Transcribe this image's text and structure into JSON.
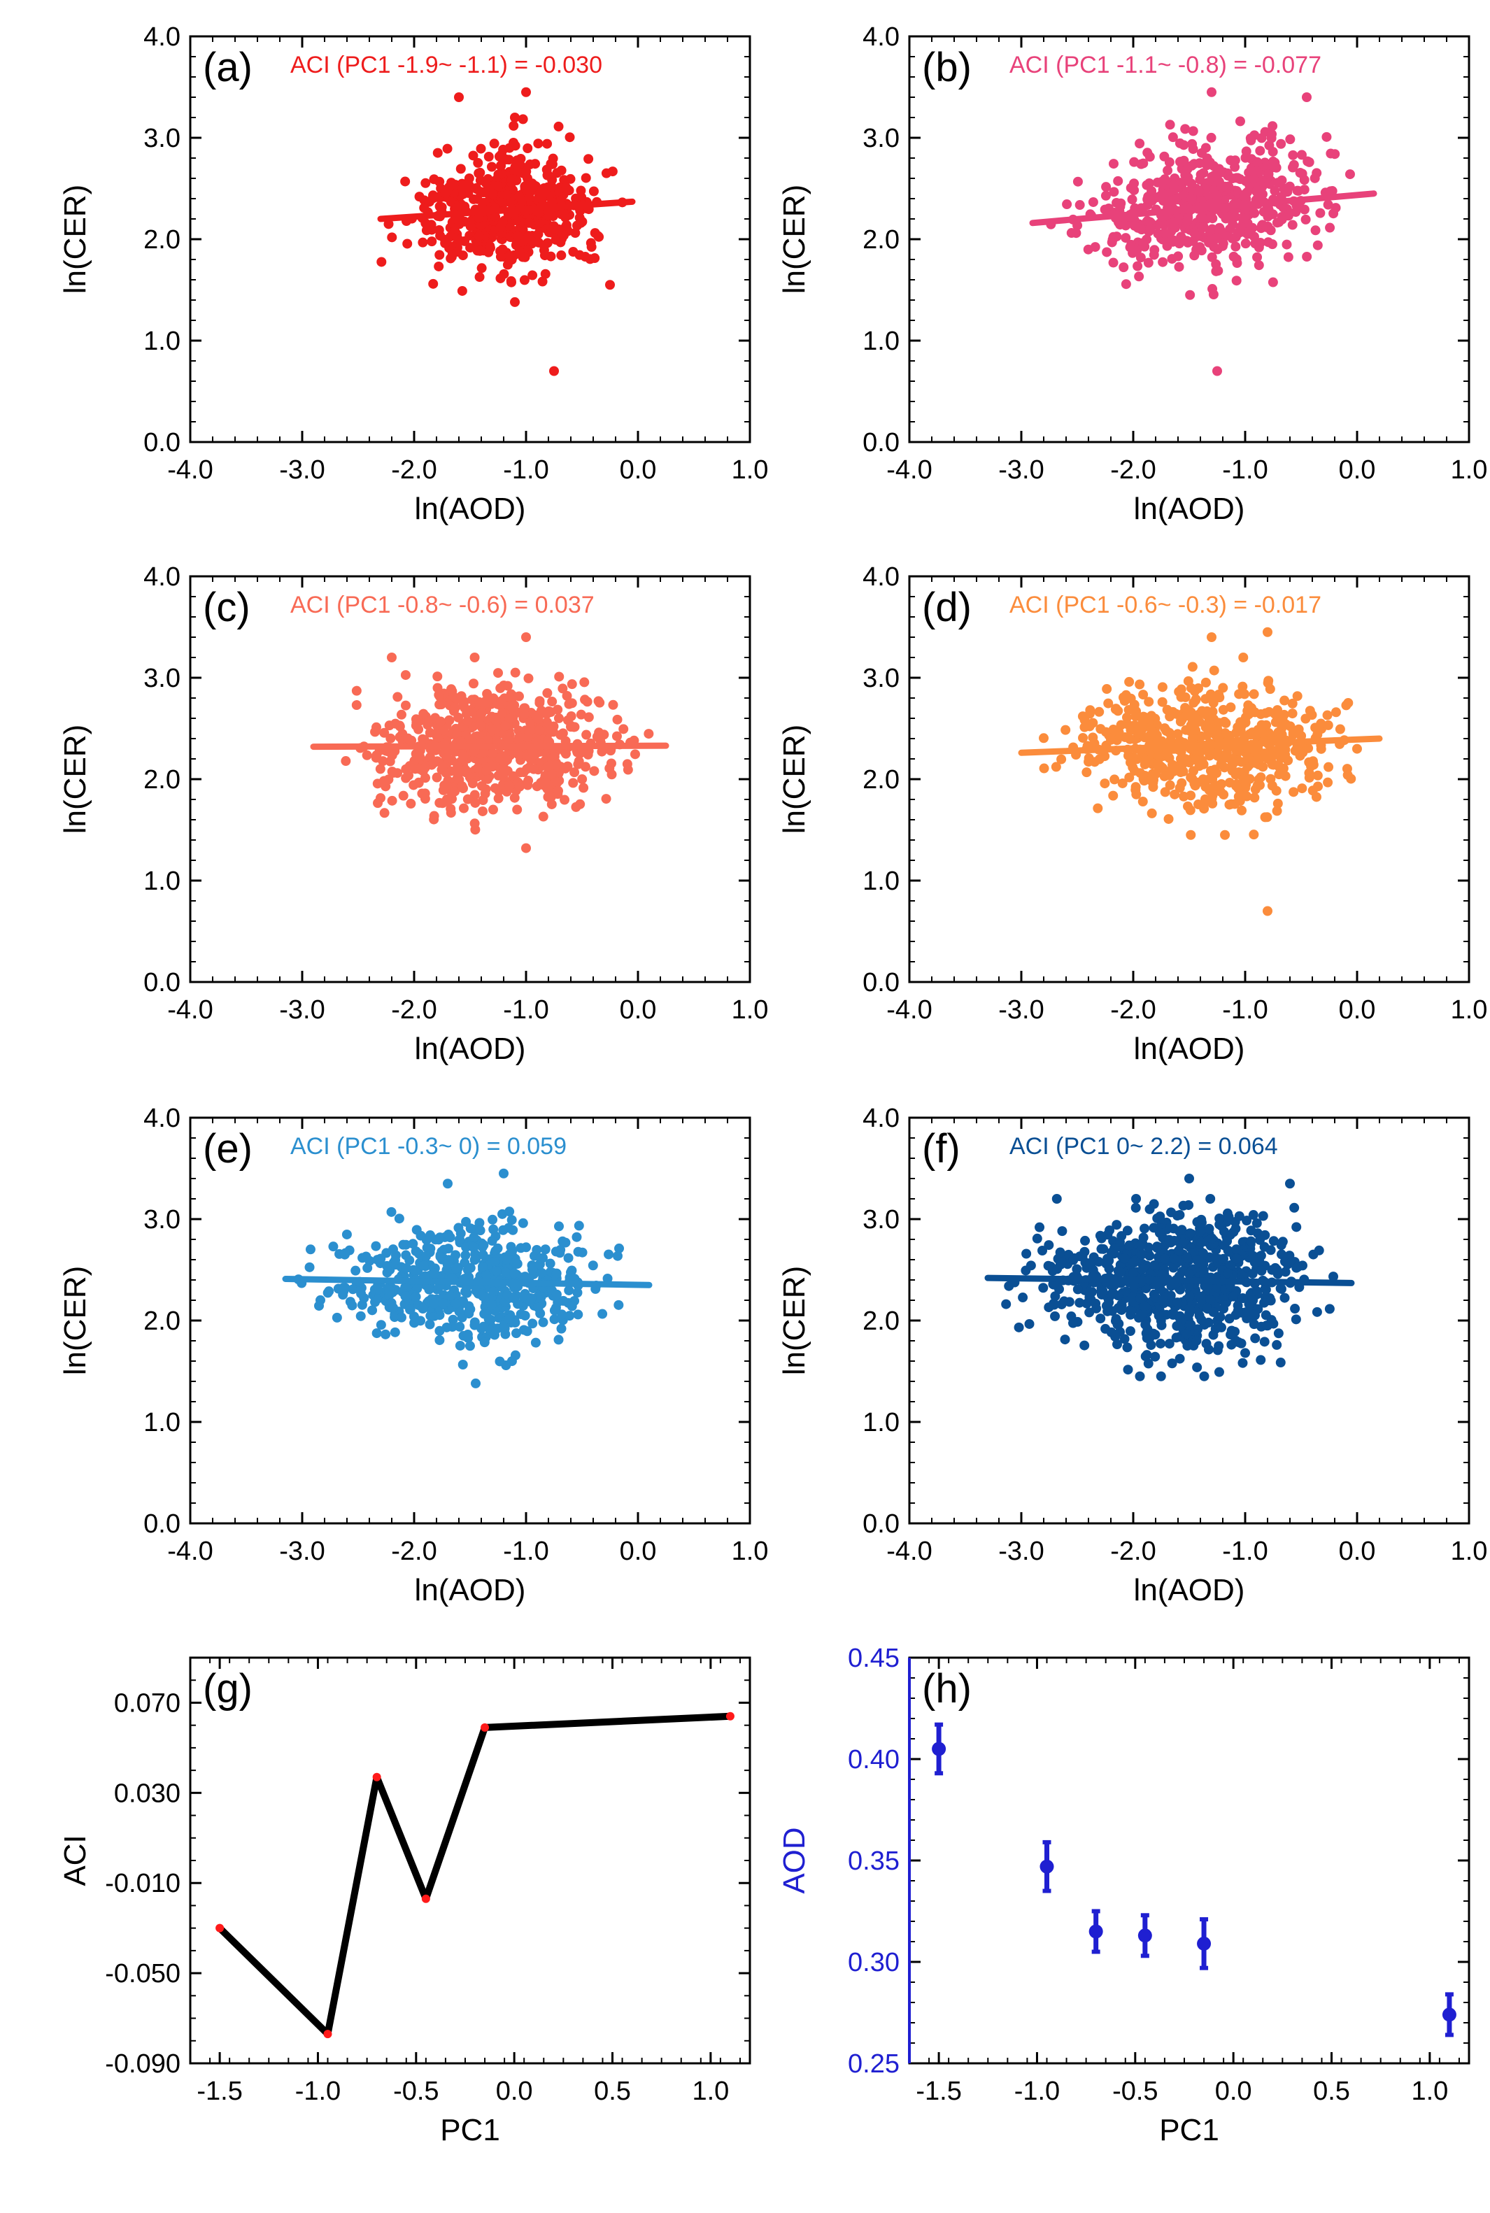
{
  "chart_data": [
    {
      "id": "a",
      "type": "scatter",
      "panel_label": "(a)",
      "annotation": "ACI (PC1 -1.9~ -1.1) =  -0.030",
      "color": "#ee1c1c",
      "xlabel": "ln(AOD)",
      "ylabel": "ln(CER)",
      "xlim": [
        -4.0,
        1.0
      ],
      "ylim": [
        0.0,
        4.0
      ],
      "xticks": [
        "-4.0",
        "-3.0",
        "-2.0",
        "-1.0",
        "0.0",
        "1.0"
      ],
      "yticks": [
        "0.0",
        "1.0",
        "2.0",
        "3.0",
        "4.0"
      ],
      "cloud": {
        "x_range": [
          -2.4,
          -0.05
        ],
        "x_center": -1.1,
        "y_center": 2.28,
        "y_sd": 0.24,
        "n": 520,
        "seed": 11
      },
      "outliers": [
        {
          "x": -0.75,
          "y": 0.7
        },
        {
          "x": -1.1,
          "y": 1.38
        },
        {
          "x": -1.6,
          "y": 3.4
        },
        {
          "x": -1.0,
          "y": 3.45
        },
        {
          "x": -0.25,
          "y": 1.55
        }
      ],
      "fit": {
        "x": [
          -2.3,
          -0.05
        ],
        "y": [
          2.2,
          2.37
        ]
      }
    },
    {
      "id": "b",
      "type": "scatter",
      "panel_label": "(b)",
      "annotation": "ACI (PC1 -1.1~ -0.8) =  -0.077",
      "color": "#e8427a",
      "xlabel": "ln(AOD)",
      "ylabel": "ln(CER)",
      "xlim": [
        -4.0,
        1.0
      ],
      "ylim": [
        0.0,
        4.0
      ],
      "xticks": [
        "-4.0",
        "-3.0",
        "-2.0",
        "-1.0",
        "0.0",
        "1.0"
      ],
      "yticks": [
        "0.0",
        "1.0",
        "2.0",
        "3.0",
        "4.0"
      ],
      "cloud": {
        "x_range": [
          -2.9,
          0.15
        ],
        "x_center": -1.2,
        "y_center": 2.32,
        "y_sd": 0.25,
        "n": 540,
        "seed": 23
      },
      "outliers": [
        {
          "x": -1.25,
          "y": 0.7
        },
        {
          "x": -1.3,
          "y": 3.45
        },
        {
          "x": -0.45,
          "y": 3.4
        }
      ],
      "fit": {
        "x": [
          -2.9,
          0.15
        ],
        "y": [
          2.16,
          2.45
        ]
      }
    },
    {
      "id": "c",
      "type": "scatter",
      "panel_label": "(c)",
      "annotation": "ACI (PC1 -0.8~ -0.6) =  0.037",
      "color": "#f86a55",
      "xlabel": "ln(AOD)",
      "ylabel": "ln(CER)",
      "xlim": [
        -4.0,
        1.0
      ],
      "ylim": [
        0.0,
        4.0
      ],
      "xticks": [
        "-4.0",
        "-3.0",
        "-2.0",
        "-1.0",
        "0.0",
        "1.0"
      ],
      "yticks": [
        "0.0",
        "1.0",
        "2.0",
        "3.0",
        "4.0"
      ],
      "cloud": {
        "x_range": [
          -2.9,
          0.3
        ],
        "x_center": -1.3,
        "y_center": 2.3,
        "y_sd": 0.24,
        "n": 620,
        "seed": 37
      },
      "outliers": [
        {
          "x": -1.0,
          "y": 1.32
        },
        {
          "x": -1.0,
          "y": 3.4
        },
        {
          "x": -2.2,
          "y": 3.2
        }
      ],
      "fit": {
        "x": [
          -2.9,
          0.25
        ],
        "y": [
          2.32,
          2.33
        ]
      }
    },
    {
      "id": "d",
      "type": "scatter",
      "panel_label": "(d)",
      "annotation": "ACI (PC1 -0.6~ -0.3) =  -0.017",
      "color": "#fb8c3c",
      "xlabel": "ln(AOD)",
      "ylabel": "ln(CER)",
      "xlim": [
        -4.0,
        1.0
      ],
      "ylim": [
        0.0,
        4.0
      ],
      "xticks": [
        "-4.0",
        "-3.0",
        "-2.0",
        "-1.0",
        "0.0",
        "1.0"
      ],
      "yticks": [
        "0.0",
        "1.0",
        "2.0",
        "3.0",
        "4.0"
      ],
      "cloud": {
        "x_range": [
          -3.0,
          0.2
        ],
        "x_center": -1.3,
        "y_center": 2.3,
        "y_sd": 0.26,
        "n": 580,
        "seed": 41
      },
      "outliers": [
        {
          "x": -0.8,
          "y": 0.7
        },
        {
          "x": -0.8,
          "y": 3.45
        },
        {
          "x": -1.3,
          "y": 3.4
        }
      ],
      "fit": {
        "x": [
          -3.0,
          0.2
        ],
        "y": [
          2.26,
          2.4
        ]
      }
    },
    {
      "id": "e",
      "type": "scatter",
      "panel_label": "(e)",
      "annotation": "ACI (PC1 -0.3~ 0) =  0.059",
      "color": "#2b8fcf",
      "xlabel": "ln(AOD)",
      "ylabel": "ln(CER)",
      "xlim": [
        -4.0,
        1.0
      ],
      "ylim": [
        0.0,
        4.0
      ],
      "xticks": [
        "-4.0",
        "-3.0",
        "-2.0",
        "-1.0",
        "0.0",
        "1.0"
      ],
      "yticks": [
        "0.0",
        "1.0",
        "2.0",
        "3.0",
        "4.0"
      ],
      "cloud": {
        "x_range": [
          -3.2,
          0.1
        ],
        "x_center": -1.4,
        "y_center": 2.33,
        "y_sd": 0.24,
        "n": 540,
        "seed": 53
      },
      "outliers": [
        {
          "x": -1.45,
          "y": 1.38
        },
        {
          "x": -1.2,
          "y": 3.45
        },
        {
          "x": -1.7,
          "y": 3.35
        }
      ],
      "fit": {
        "x": [
          -3.15,
          0.1
        ],
        "y": [
          2.41,
          2.35
        ]
      }
    },
    {
      "id": "f",
      "type": "scatter",
      "panel_label": "(f)",
      "annotation": "ACI (PC1 0~ 2.2) =  0.064",
      "color": "#0a4f94",
      "xlabel": "ln(AOD)",
      "ylabel": "ln(CER)",
      "xlim": [
        -4.0,
        1.0
      ],
      "ylim": [
        0.0,
        4.0
      ],
      "xticks": [
        "-4.0",
        "-3.0",
        "-2.0",
        "-1.0",
        "0.0",
        "1.0"
      ],
      "yticks": [
        "0.0",
        "1.0",
        "2.0",
        "3.0",
        "4.0"
      ],
      "cloud": {
        "x_range": [
          -3.3,
          -0.05
        ],
        "x_center": -1.5,
        "y_center": 2.35,
        "y_sd": 0.27,
        "n": 760,
        "seed": 67
      },
      "outliers": [
        {
          "x": -1.0,
          "y": 1.68
        },
        {
          "x": -1.5,
          "y": 3.4
        },
        {
          "x": -0.6,
          "y": 3.35
        }
      ],
      "fit": {
        "x": [
          -3.3,
          -0.05
        ],
        "y": [
          2.42,
          2.37
        ]
      }
    },
    {
      "id": "g",
      "type": "line",
      "panel_label": "(g)",
      "xlabel": "PC1",
      "ylabel": "ACI",
      "xlim": [
        -1.65,
        1.2
      ],
      "ylim": [
        -0.09,
        0.09
      ],
      "xticks": [
        -1.5,
        -1.0,
        -0.5,
        0.0,
        0.5,
        1.0
      ],
      "xtick_labels": [
        "-1.5",
        "-1.0",
        "-0.5",
        "0.0",
        "0.5",
        "1.0"
      ],
      "yticks": [
        -0.09,
        -0.05,
        -0.01,
        0.03,
        0.07
      ],
      "ytick_labels": [
        "-0.090",
        "-0.050",
        "-0.010",
        "0.030",
        "0.070"
      ],
      "line_color": "#000000",
      "marker_color": "#ff1a1a",
      "x": [
        -1.5,
        -0.95,
        -0.7,
        -0.45,
        -0.15,
        1.1
      ],
      "y": [
        -0.03,
        -0.077,
        0.037,
        -0.017,
        0.059,
        0.064
      ]
    },
    {
      "id": "h",
      "type": "scatter",
      "panel_label": "(h)",
      "xlabel": "PC1",
      "ylabel": "AOD",
      "xlim": [
        -1.65,
        1.2
      ],
      "ylim": [
        0.25,
        0.45
      ],
      "xticks": [
        -1.5,
        -1.0,
        -0.5,
        0.0,
        0.5,
        1.0
      ],
      "xtick_labels": [
        "-1.5",
        "-1.0",
        "-0.5",
        "0.0",
        "0.5",
        "1.0"
      ],
      "yticks": [
        0.25,
        0.3,
        0.35,
        0.4,
        0.45
      ],
      "ytick_labels": [
        "0.25",
        "0.30",
        "0.35",
        "0.40",
        "0.45"
      ],
      "color": "#1f1fd1",
      "x": [
        -1.5,
        -0.95,
        -0.7,
        -0.45,
        -0.15,
        1.1
      ],
      "y": [
        0.405,
        0.347,
        0.315,
        0.313,
        0.309,
        0.274
      ],
      "err": [
        0.012,
        0.012,
        0.01,
        0.01,
        0.012,
        0.01
      ]
    }
  ]
}
